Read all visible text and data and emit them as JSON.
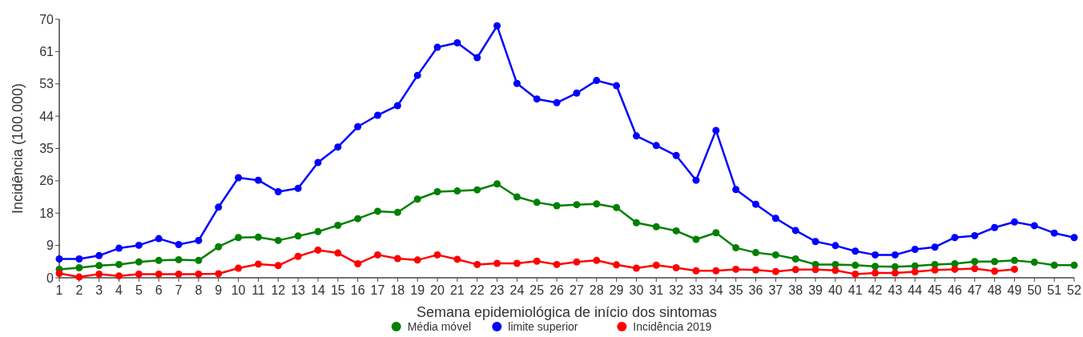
{
  "chart_data": {
    "type": "line",
    "xlabel": "Semana epidemiológica de início dos sintomas",
    "ylabel": "Incidência (100.000)",
    "x": [
      1,
      2,
      3,
      4,
      5,
      6,
      7,
      8,
      9,
      10,
      11,
      12,
      13,
      14,
      15,
      16,
      17,
      18,
      19,
      20,
      21,
      22,
      23,
      24,
      25,
      26,
      27,
      28,
      29,
      30,
      31,
      32,
      33,
      34,
      35,
      36,
      37,
      38,
      39,
      40,
      41,
      42,
      43,
      44,
      45,
      46,
      47,
      48,
      49,
      50,
      51,
      52
    ],
    "xlim": [
      1,
      52
    ],
    "xticks": [
      1,
      2,
      3,
      4,
      5,
      6,
      7,
      8,
      9,
      10,
      11,
      12,
      13,
      14,
      15,
      16,
      17,
      18,
      19,
      20,
      21,
      22,
      23,
      24,
      25,
      26,
      27,
      28,
      29,
      30,
      31,
      32,
      33,
      34,
      35,
      36,
      37,
      38,
      39,
      40,
      41,
      42,
      43,
      44,
      45,
      46,
      47,
      48,
      49,
      50,
      51,
      52
    ],
    "ylim": [
      0,
      70
    ],
    "yticks": [
      0,
      {
        "value": 8.75,
        "label": "9"
      },
      {
        "value": 17.5,
        "label": "18"
      },
      {
        "value": 26.25,
        "label": "26"
      },
      35,
      {
        "value": 43.75,
        "label": "44"
      },
      {
        "value": 52.5,
        "label": "53"
      },
      {
        "value": 61.25,
        "label": "61"
      },
      70
    ],
    "grid": false,
    "legend": "bottom",
    "marker": "circle",
    "line_style": "solid",
    "series": [
      {
        "name": "Média móvel",
        "color": "#008000",
        "values": [
          2.3,
          2.7,
          3.3,
          3.6,
          4.3,
          4.7,
          4.9,
          4.7,
          8.4,
          10.9,
          11.0,
          10.1,
          11.3,
          12.5,
          14.2,
          16.0,
          18.0,
          17.7,
          21.3,
          23.3,
          23.5,
          23.8,
          25.4,
          21.9,
          20.4,
          19.5,
          19.8,
          20.0,
          19.0,
          14.9,
          13.8,
          12.7,
          10.4,
          12.2,
          8.1,
          6.8,
          6.2,
          5.1,
          3.6,
          3.6,
          3.4,
          3.1,
          3.0,
          3.2,
          3.6,
          3.8,
          4.4,
          4.4,
          4.7,
          4.2,
          3.4,
          3.4
        ]
      },
      {
        "name": "limite superior",
        "color": "#0000ff",
        "values": [
          5.1,
          5.1,
          6.0,
          8.0,
          8.8,
          10.6,
          9.0,
          10.1,
          19.1,
          27.1,
          26.4,
          23.3,
          24.2,
          31.2,
          35.4,
          40.9,
          44.0,
          46.6,
          54.8,
          62.4,
          63.6,
          59.6,
          68.2,
          52.6,
          48.4,
          47.4,
          50.0,
          53.4,
          52.0,
          38.4,
          35.8,
          33.1,
          26.4,
          39.9,
          23.9,
          19.9,
          16.1,
          12.8,
          9.8,
          8.7,
          7.2,
          6.2,
          6.2,
          7.7,
          8.3,
          10.9,
          11.4,
          13.6,
          15.1,
          14.1,
          12.1,
          10.9
        ]
      },
      {
        "name": "Incidência 2019",
        "color": "#ff0000",
        "values": [
          1.2,
          0.2,
          1.0,
          0.5,
          1.0,
          1.0,
          1.0,
          1.0,
          1.1,
          2.6,
          3.7,
          3.3,
          5.8,
          7.5,
          6.7,
          3.8,
          6.2,
          5.2,
          4.8,
          6.2,
          5.0,
          3.6,
          3.9,
          3.9,
          4.5,
          3.6,
          4.3,
          4.7,
          3.5,
          2.6,
          3.4,
          2.7,
          1.9,
          1.9,
          2.3,
          2.1,
          1.7,
          2.2,
          2.2,
          2.0,
          1.0,
          1.3,
          1.3,
          1.6,
          2.1,
          2.3,
          2.5,
          1.8,
          2.3,
          null,
          null,
          null
        ]
      }
    ]
  }
}
